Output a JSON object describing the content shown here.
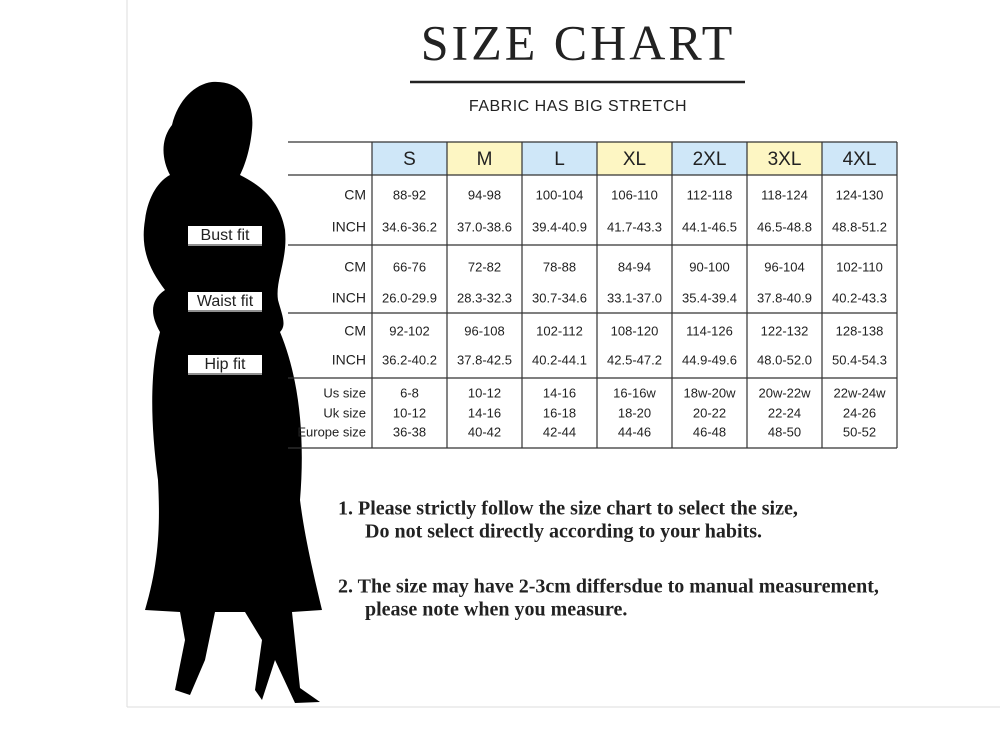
{
  "header": {
    "title": "SIZE CHART",
    "subtitle": "FABRIC HAS BIG STRETCH"
  },
  "figure": {
    "labels": [
      "Bust fit",
      "Waist fit",
      "Hip fit"
    ]
  },
  "table": {
    "sizes": [
      "S",
      "M",
      "L",
      "XL",
      "2XL",
      "3XL",
      "4XL"
    ],
    "groups": [
      {
        "rows": [
          {
            "label": "CM",
            "values": [
              "88-92",
              "94-98",
              "100-104",
              "106-110",
              "112-118",
              "118-124",
              "124-130"
            ]
          },
          {
            "label": "INCH",
            "values": [
              "34.6-36.2",
              "37.0-38.6",
              "39.4-40.9",
              "41.7-43.3",
              "44.1-46.5",
              "46.5-48.8",
              "48.8-51.2"
            ]
          }
        ]
      },
      {
        "rows": [
          {
            "label": "CM",
            "values": [
              "66-76",
              "72-82",
              "78-88",
              "84-94",
              "90-100",
              "96-104",
              "102-110"
            ]
          },
          {
            "label": "INCH",
            "values": [
              "26.0-29.9",
              "28.3-32.3",
              "30.7-34.6",
              "33.1-37.0",
              "35.4-39.4",
              "37.8-40.9",
              "40.2-43.3"
            ]
          }
        ]
      },
      {
        "rows": [
          {
            "label": "CM",
            "values": [
              "92-102",
              "96-108",
              "102-112",
              "108-120",
              "114-126",
              "122-132",
              "128-138"
            ]
          },
          {
            "label": "INCH",
            "values": [
              "36.2-40.2",
              "37.8-42.5",
              "40.2-44.1",
              "42.5-47.2",
              "44.9-49.6",
              "48.0-52.0",
              "50.4-54.3"
            ]
          }
        ]
      },
      {
        "rows": [
          {
            "label": "Us size",
            "values": [
              "6-8",
              "10-12",
              "14-16",
              "16-16w",
              "18w-20w",
              "20w-22w",
              "22w-24w"
            ]
          },
          {
            "label": "Uk size",
            "values": [
              "10-12",
              "14-16",
              "16-18",
              "18-20",
              "20-22",
              "22-24",
              "24-26"
            ]
          },
          {
            "label": "Europe size",
            "values": [
              "36-38",
              "40-42",
              "42-44",
              "44-46",
              "46-48",
              "48-50",
              "50-52"
            ]
          }
        ]
      }
    ]
  },
  "notes": [
    [
      "1.  Please strictly follow the size chart to select the size,",
      "Do not select directly according to your habits."
    ],
    [
      "2.  The size may have 2-3cm differsdue to manual measurement,",
      "please note when you measure."
    ]
  ]
}
